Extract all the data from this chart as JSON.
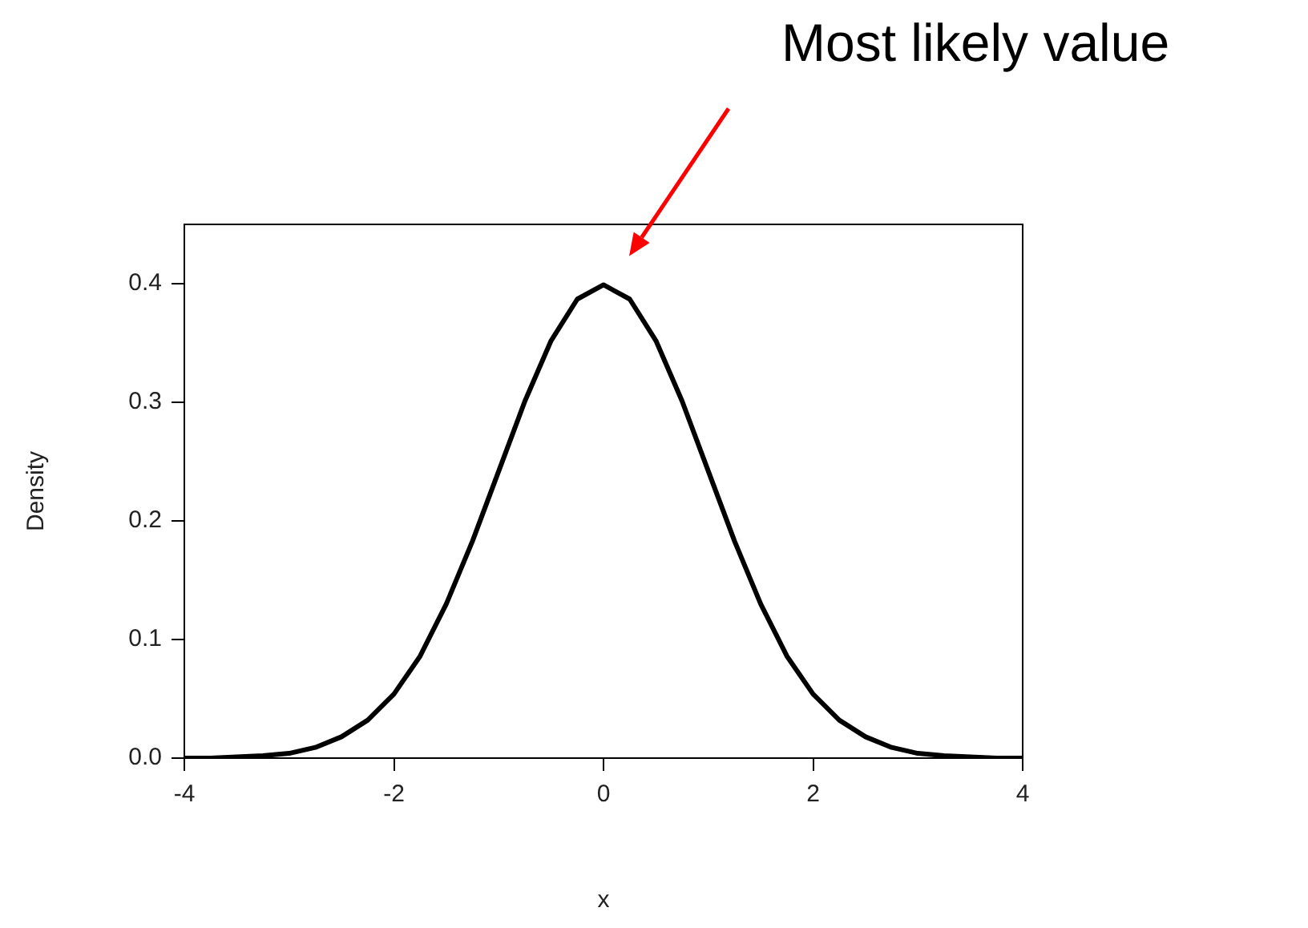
{
  "chart_data": {
    "type": "line",
    "xlabel": "x",
    "ylabel": "Density",
    "x": [
      -4,
      -3.75,
      -3.5,
      -3.25,
      -3,
      -2.75,
      -2.5,
      -2.25,
      -2,
      -1.75,
      -1.5,
      -1.25,
      -1,
      -0.75,
      -0.5,
      -0.25,
      0,
      0.25,
      0.5,
      0.75,
      1,
      1.25,
      1.5,
      1.75,
      2,
      2.25,
      2.5,
      2.75,
      3,
      3.25,
      3.5,
      3.75,
      4
    ],
    "series": [
      {
        "color": "#000000",
        "values": [
          0.0,
          0.0,
          0.001,
          0.002,
          0.004,
          0.009,
          0.018,
          0.032,
          0.054,
          0.086,
          0.13,
          0.183,
          0.242,
          0.301,
          0.352,
          0.387,
          0.399,
          0.387,
          0.352,
          0.301,
          0.242,
          0.183,
          0.13,
          0.086,
          0.054,
          0.032,
          0.018,
          0.009,
          0.004,
          0.002,
          0.001,
          0.0,
          0.0
        ]
      }
    ],
    "xlim": [
      -4,
      4
    ],
    "xticks": [
      {
        "value": -4,
        "label": "-4"
      },
      {
        "value": -2,
        "label": "-2"
      },
      0,
      2,
      4
    ],
    "ylim": [
      0,
      0.45
    ],
    "yticks": [
      {
        "value": 0,
        "label": "0.0"
      },
      0.1,
      0.2,
      0.3,
      0.4
    ],
    "grid": false,
    "legend": false,
    "marker": "none",
    "line_style": "solid",
    "annotations": [
      "Most likely value"
    ]
  }
}
